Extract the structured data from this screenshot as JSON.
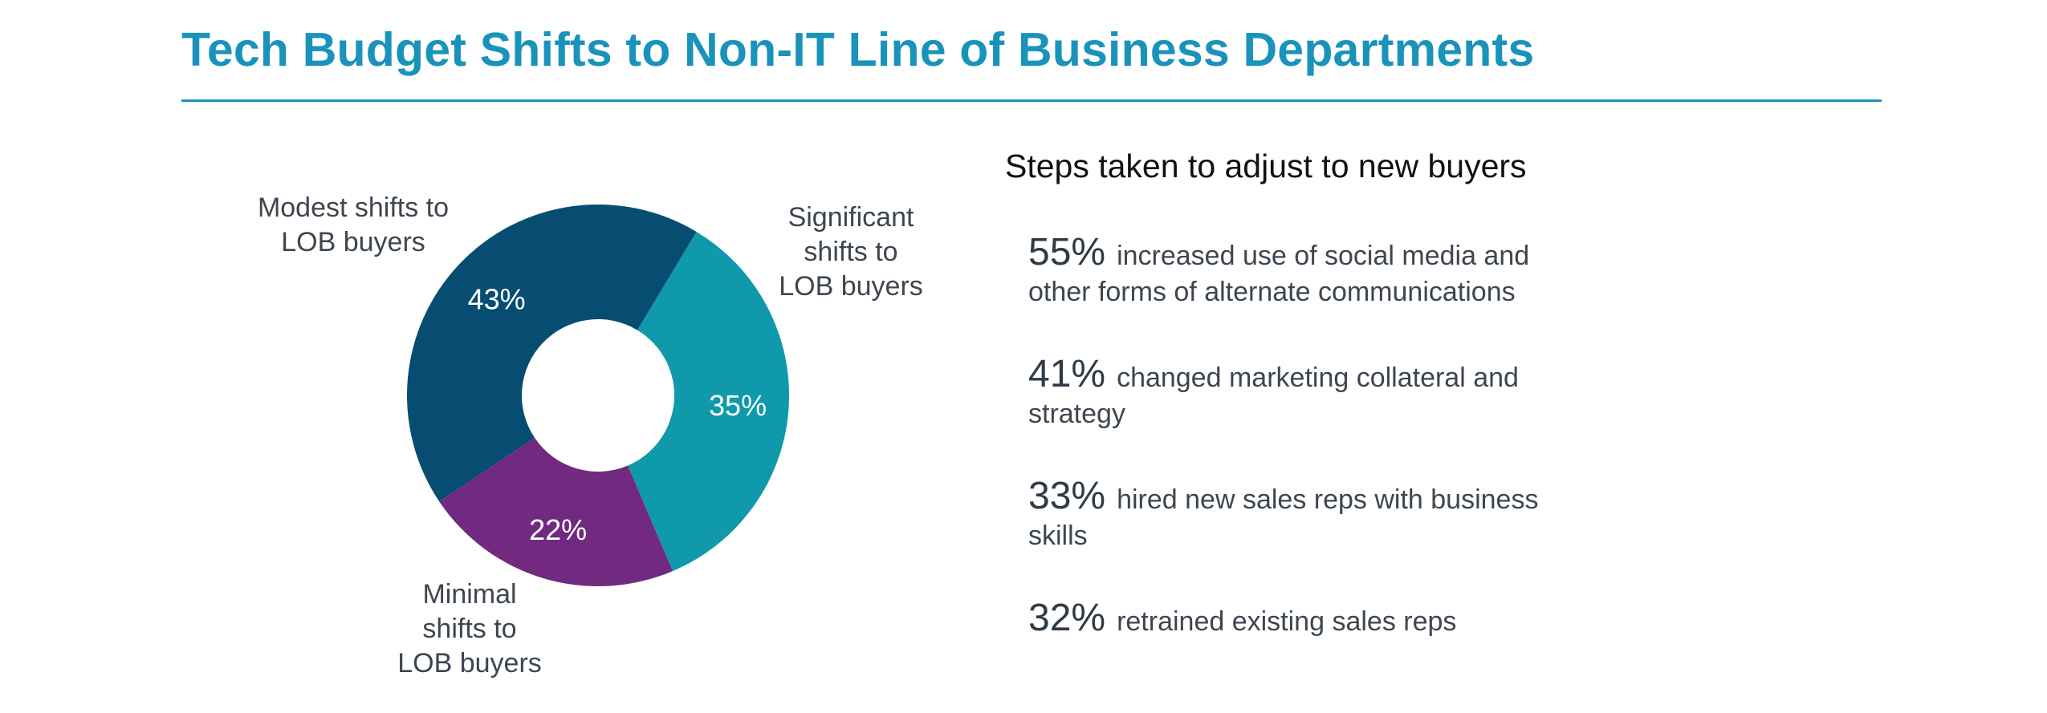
{
  "title": "Tech Budget Shifts to Non-IT Line of Business Departments",
  "chart_data": {
    "type": "pie",
    "variant": "donut",
    "slices": [
      {
        "label_lines": [
          "Modest shifts to",
          "LOB buyers"
        ],
        "value": 43,
        "value_label": "43%",
        "color": "#064d71"
      },
      {
        "label_lines": [
          "Significant",
          "shifts to",
          "LOB buyers"
        ],
        "value": 35,
        "value_label": "35%",
        "color": "#0f99aa"
      },
      {
        "label_lines": [
          "Minimal",
          "shifts to",
          "LOB buyers"
        ],
        "value": 22,
        "value_label": "22%",
        "color": "#712a80"
      }
    ]
  },
  "steps": {
    "heading": "Steps taken to adjust to new buyers",
    "items": [
      {
        "percent": "55%",
        "line1": "increased use of social media and",
        "line2": "other forms of alternate communications"
      },
      {
        "percent": "41%",
        "line1": "changed marketing collateral and",
        "line2": "strategy"
      },
      {
        "percent": "33%",
        "line1": "hired new sales reps with business",
        "line2": "skills"
      },
      {
        "percent": "32%",
        "line1": "retrained existing sales reps",
        "line2": ""
      }
    ]
  }
}
